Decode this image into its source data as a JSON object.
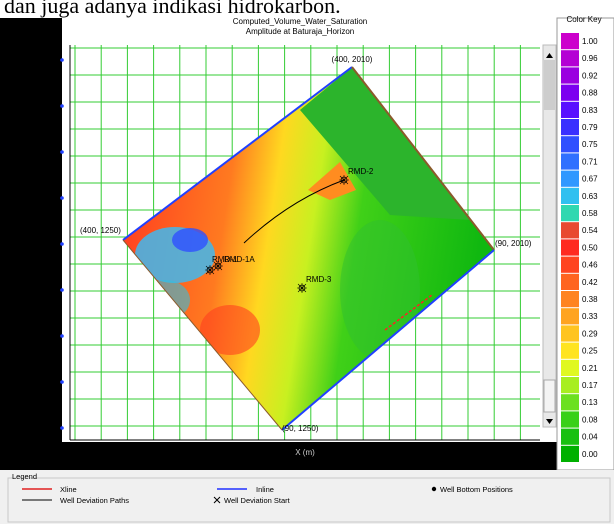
{
  "caption": "dan juga adanya indikasi hidrokarbon.",
  "plot": {
    "title": "Computed_Volume_Water_Saturation",
    "subtitle": "Amplitude at Baturaja_Horizon",
    "x_axis_label": "X (m)",
    "corners": [
      "(400, 2010)",
      "(400, 1250)",
      "(90, 2010)",
      "(90, 1250)"
    ],
    "wells": [
      "RMD-2",
      "RMD-1A",
      "RMD-1",
      "RMD-3"
    ]
  },
  "color_key": {
    "title": "Color Key",
    "entries": [
      {
        "label": "1.00",
        "color": "#cc00cc"
      },
      {
        "label": "0.96",
        "color": "#b400d4"
      },
      {
        "label": "0.92",
        "color": "#9a00e0"
      },
      {
        "label": "0.88",
        "color": "#7c00f0"
      },
      {
        "label": "0.83",
        "color": "#5a10ff"
      },
      {
        "label": "0.79",
        "color": "#3a30ff"
      },
      {
        "label": "0.75",
        "color": "#3050ff"
      },
      {
        "label": "0.71",
        "color": "#3070ff"
      },
      {
        "label": "0.67",
        "color": "#3098ff"
      },
      {
        "label": "0.63",
        "color": "#30c0f0"
      },
      {
        "label": "0.58",
        "color": "#30d8b0"
      },
      {
        "label": "0.54",
        "color": "#e84a30"
      },
      {
        "label": "0.50",
        "color": "#ff2a20"
      },
      {
        "label": "0.46",
        "color": "#ff4420"
      },
      {
        "label": "0.42",
        "color": "#ff6420"
      },
      {
        "label": "0.38",
        "color": "#ff8420"
      },
      {
        "label": "0.33",
        "color": "#ffa420"
      },
      {
        "label": "0.29",
        "color": "#ffc420"
      },
      {
        "label": "0.25",
        "color": "#ffe420"
      },
      {
        "label": "0.21",
        "color": "#e0f820"
      },
      {
        "label": "0.17",
        "color": "#a8ee20"
      },
      {
        "label": "0.13",
        "color": "#6ce020"
      },
      {
        "label": "0.08",
        "color": "#38d018"
      },
      {
        "label": "0.04",
        "color": "#18c010"
      },
      {
        "label": "0.00",
        "color": "#00b000"
      }
    ]
  },
  "legend": {
    "title": "Legend",
    "items": [
      "Xline",
      "Inline",
      "Well Bottom Positions",
      "Well Deviation Paths",
      "Well Deviation Start"
    ]
  }
}
